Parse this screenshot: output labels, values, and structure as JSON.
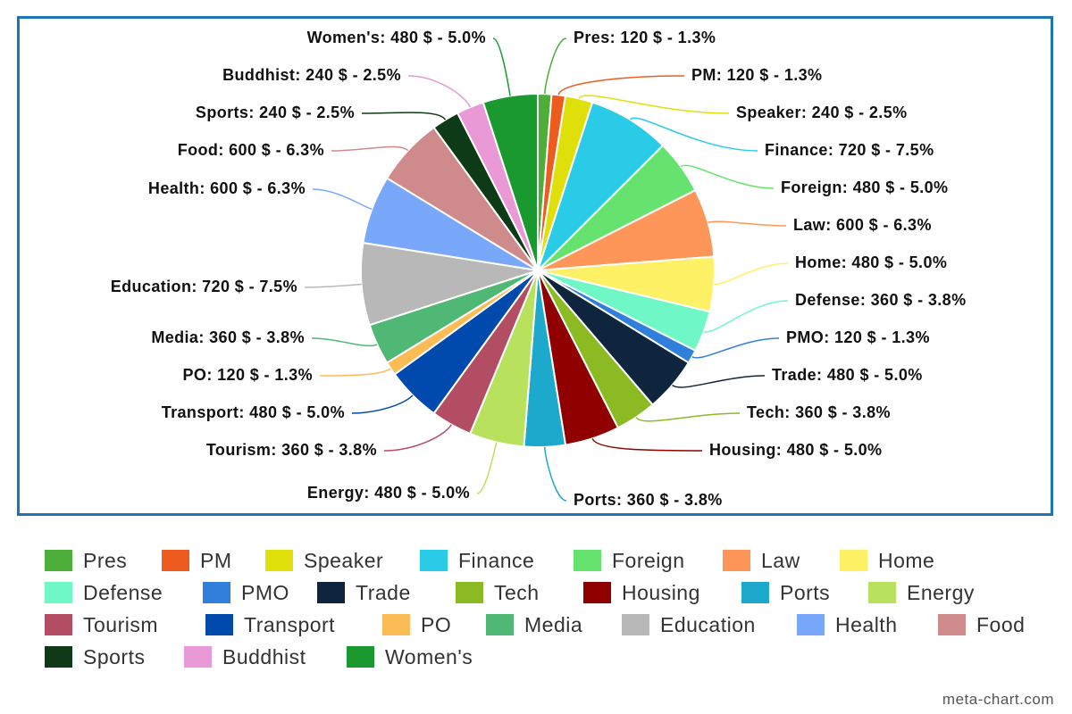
{
  "chart_data": {
    "type": "pie",
    "currency_symbol": "$",
    "slices": [
      {
        "label": "Pres",
        "value": 120,
        "percent": 1.3,
        "color": "#4daf3a"
      },
      {
        "label": "PM",
        "value": 120,
        "percent": 1.3,
        "color": "#ee5b1e"
      },
      {
        "label": "Speaker",
        "value": 240,
        "percent": 2.5,
        "color": "#dfe00a"
      },
      {
        "label": "Finance",
        "value": 720,
        "percent": 7.5,
        "color": "#29cbe6"
      },
      {
        "label": "Foreign",
        "value": 480,
        "percent": 5.0,
        "color": "#66e36f"
      },
      {
        "label": "Law",
        "value": 600,
        "percent": 6.3,
        "color": "#fd9658"
      },
      {
        "label": "Home",
        "value": 480,
        "percent": 5.0,
        "color": "#fff165"
      },
      {
        "label": "Defense",
        "value": 360,
        "percent": 3.8,
        "color": "#6ff7c6"
      },
      {
        "label": "PMO",
        "value": 120,
        "percent": 1.3,
        "color": "#2f7fdb"
      },
      {
        "label": "Trade",
        "value": 480,
        "percent": 5.0,
        "color": "#0f243d"
      },
      {
        "label": "Tech",
        "value": 360,
        "percent": 3.8,
        "color": "#8bba23"
      },
      {
        "label": "Housing",
        "value": 480,
        "percent": 5.0,
        "color": "#900000"
      },
      {
        "label": "Ports",
        "value": 360,
        "percent": 3.8,
        "color": "#1ca9cc"
      },
      {
        "label": "Energy",
        "value": 480,
        "percent": 5.0,
        "color": "#b8e25e"
      },
      {
        "label": "Tourism",
        "value": 360,
        "percent": 3.8,
        "color": "#b34d64"
      },
      {
        "label": "Transport",
        "value": 480,
        "percent": 5.0,
        "color": "#0049ad"
      },
      {
        "label": "PO",
        "value": 120,
        "percent": 1.3,
        "color": "#fbbb55"
      },
      {
        "label": "Media",
        "value": 360,
        "percent": 3.8,
        "color": "#4fb874"
      },
      {
        "label": "Education",
        "value": 720,
        "percent": 7.5,
        "color": "#b8b8b8"
      },
      {
        "label": "Health",
        "value": 600,
        "percent": 6.3,
        "color": "#79a8fb"
      },
      {
        "label": "Food",
        "value": 600,
        "percent": 6.3,
        "color": "#cf8b8b"
      },
      {
        "label": "Sports",
        "value": 240,
        "percent": 2.5,
        "color": "#0f3a18"
      },
      {
        "label": "Buddhist",
        "value": 240,
        "percent": 2.5,
        "color": "#e999d6"
      },
      {
        "label": "Women's",
        "value": 480,
        "percent": 5.0,
        "color": "#19992e"
      }
    ],
    "legend_position": "bottom",
    "title": ""
  },
  "watermark": "meta-chart.com"
}
